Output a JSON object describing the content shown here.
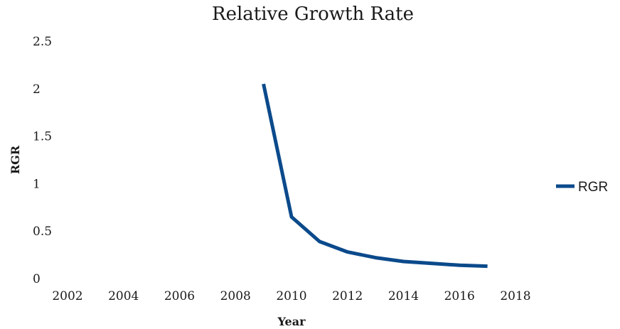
{
  "chart_data": {
    "type": "line",
    "title": "Relative Growth Rate",
    "xlabel": "Year",
    "ylabel": "RGR",
    "xlim": [
      2002,
      2018
    ],
    "ylim": [
      0,
      2.5
    ],
    "xticks": [
      "2002",
      "2004",
      "2006",
      "2008",
      "2010",
      "2012",
      "2014",
      "2016",
      "2018"
    ],
    "yticks": [
      "0",
      "0.5",
      "1",
      "1.5",
      "2",
      "2.5"
    ],
    "grid": false,
    "legend_position": "right",
    "series": [
      {
        "name": "RGR",
        "color": "#0b4a8b",
        "x": [
          2009,
          2010,
          2011,
          2012,
          2013,
          2014,
          2015,
          2016,
          2017
        ],
        "y": [
          2.05,
          0.65,
          0.39,
          0.28,
          0.22,
          0.18,
          0.16,
          0.14,
          0.13
        ]
      }
    ]
  }
}
